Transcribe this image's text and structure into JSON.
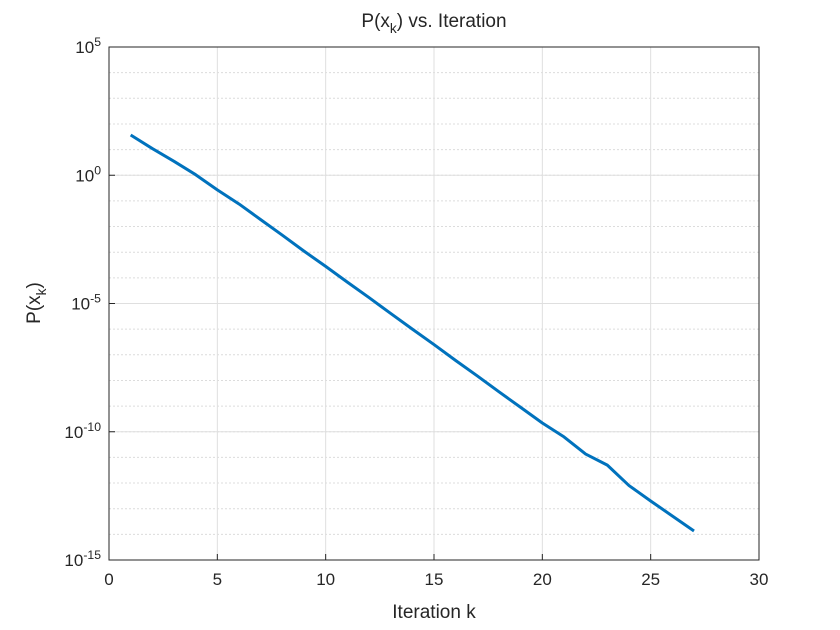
{
  "chart_data": {
    "type": "line",
    "title": "P(x_k) vs. Iteration",
    "xlabel": "Iteration k",
    "ylabel": "P(x_k)",
    "x": [
      1,
      2,
      3,
      4,
      5,
      6,
      7,
      8,
      9,
      10,
      11,
      12,
      13,
      14,
      15,
      16,
      17,
      18,
      19,
      20,
      21,
      22,
      23,
      24,
      25,
      26,
      27
    ],
    "series": [
      {
        "name": "P(x_k)",
        "color": "#0072bd",
        "values": [
          37,
          11,
          3.5,
          1.05,
          0.27,
          0.076,
          0.0186,
          0.0046,
          0.0011,
          0.00028,
          6.8e-05,
          1.7e-05,
          4.1e-06,
          1e-06,
          2.5e-07,
          6e-08,
          1.5e-08,
          3.6e-09,
          8.9e-10,
          2.2e-10,
          6.3e-11,
          1.35e-11,
          5e-12,
          8e-13,
          2e-13,
          5.2e-14,
          1.35e-14
        ]
      }
    ],
    "xlim": [
      0,
      30
    ],
    "xticks": [
      0,
      5,
      10,
      15,
      20,
      25,
      30
    ],
    "ylim": [
      1e-15,
      100000
    ],
    "ylog": true,
    "yticks": [
      {
        "value": 1e-15,
        "label": "10^{-15}"
      },
      {
        "value": 1e-10,
        "label": "10^{-10}"
      },
      {
        "value": 1e-05,
        "label": "10^{-5}"
      },
      {
        "value": 1,
        "label": "10^{0}"
      },
      {
        "value": 100000,
        "label": "10^{5}"
      }
    ],
    "grid": true,
    "minor_grid": true
  }
}
